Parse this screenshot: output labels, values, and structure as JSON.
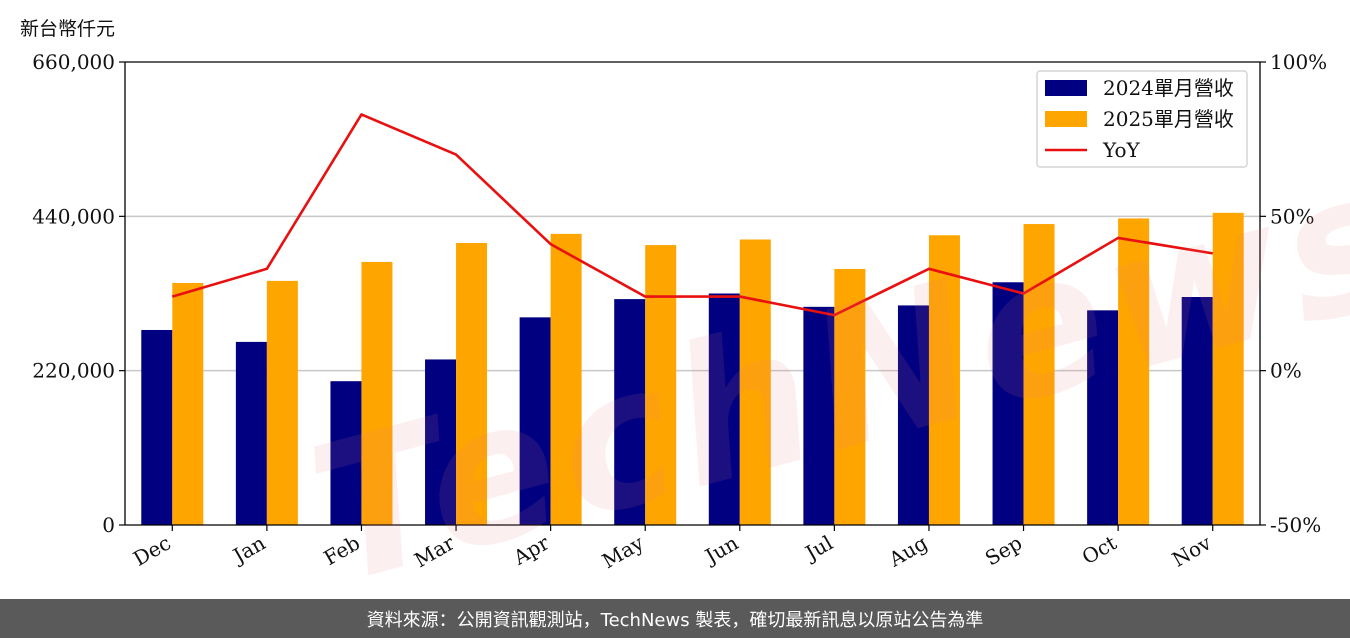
{
  "unit_label": "新台幣仟元",
  "watermark": "TechNews",
  "footer_text": "資料來源：公開資訊觀測站，TechNews 製表，確切最新訊息以原站公告為準",
  "colors": {
    "series_2024": "#000080",
    "series_2025": "#FFA500",
    "yoy": "#E81010",
    "grid": "#c8c8c8",
    "footer_bg": "#5a5a5a"
  },
  "chart_data": {
    "type": "bar",
    "categories": [
      "Dec",
      "Jan",
      "Feb",
      "Mar",
      "Apr",
      "May",
      "Jun",
      "Jul",
      "Aug",
      "Sep",
      "Oct",
      "Nov"
    ],
    "series": [
      {
        "name": "2024單月營收",
        "type": "bar",
        "axis": "left",
        "values": [
          278000,
          261000,
          205000,
          236000,
          296000,
          322000,
          330000,
          311000,
          313000,
          346000,
          306000,
          325000
        ]
      },
      {
        "name": "2025單月營收",
        "type": "bar",
        "axis": "left",
        "values": [
          345000,
          348000,
          375000,
          402000,
          415000,
          399000,
          407000,
          365000,
          413000,
          429000,
          437000,
          445000
        ]
      },
      {
        "name": "YoY",
        "type": "line",
        "axis": "right",
        "values": [
          24,
          33,
          83,
          70,
          41,
          24,
          24,
          18,
          33,
          25,
          43,
          38
        ]
      }
    ],
    "y_left": {
      "ylim": [
        0,
        660000
      ],
      "ticks": [
        "0",
        "220,000",
        "440,000",
        "660,000"
      ],
      "tick_values": [
        0,
        220000,
        440000,
        660000
      ]
    },
    "y_right": {
      "ylim": [
        -50,
        100
      ],
      "ticks": [
        "-50%",
        "0%",
        "50%",
        "100%"
      ],
      "tick_values": [
        -50,
        0,
        50,
        100
      ]
    },
    "grid": "horizontal",
    "legend": {
      "position": "top-right",
      "entries": [
        "2024單月營收",
        "2025單月營收",
        "YoY"
      ]
    }
  }
}
